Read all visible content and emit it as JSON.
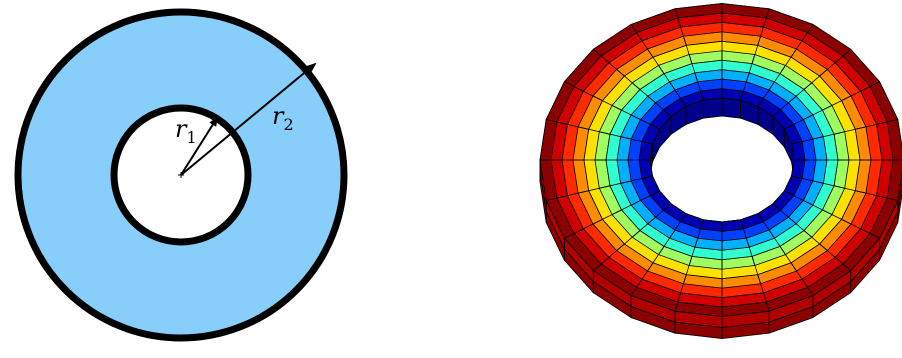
{
  "annulus_diagram": {
    "inner_radius_label": "r",
    "inner_radius_sub": "1",
    "outer_radius_label": "r",
    "outer_radius_sub": "2",
    "fill_color": "#87CEFA",
    "stroke_color": "#000000"
  },
  "torus_mesh": {
    "colormap": "jet",
    "colors": [
      "#8b0000",
      "#d10000",
      "#ff2a00",
      "#ff8c00",
      "#ffe100",
      "#9fff60",
      "#30ffd0",
      "#00b0ff",
      "#0040ff",
      "#0000b0"
    ],
    "edge_color": "#000000"
  }
}
